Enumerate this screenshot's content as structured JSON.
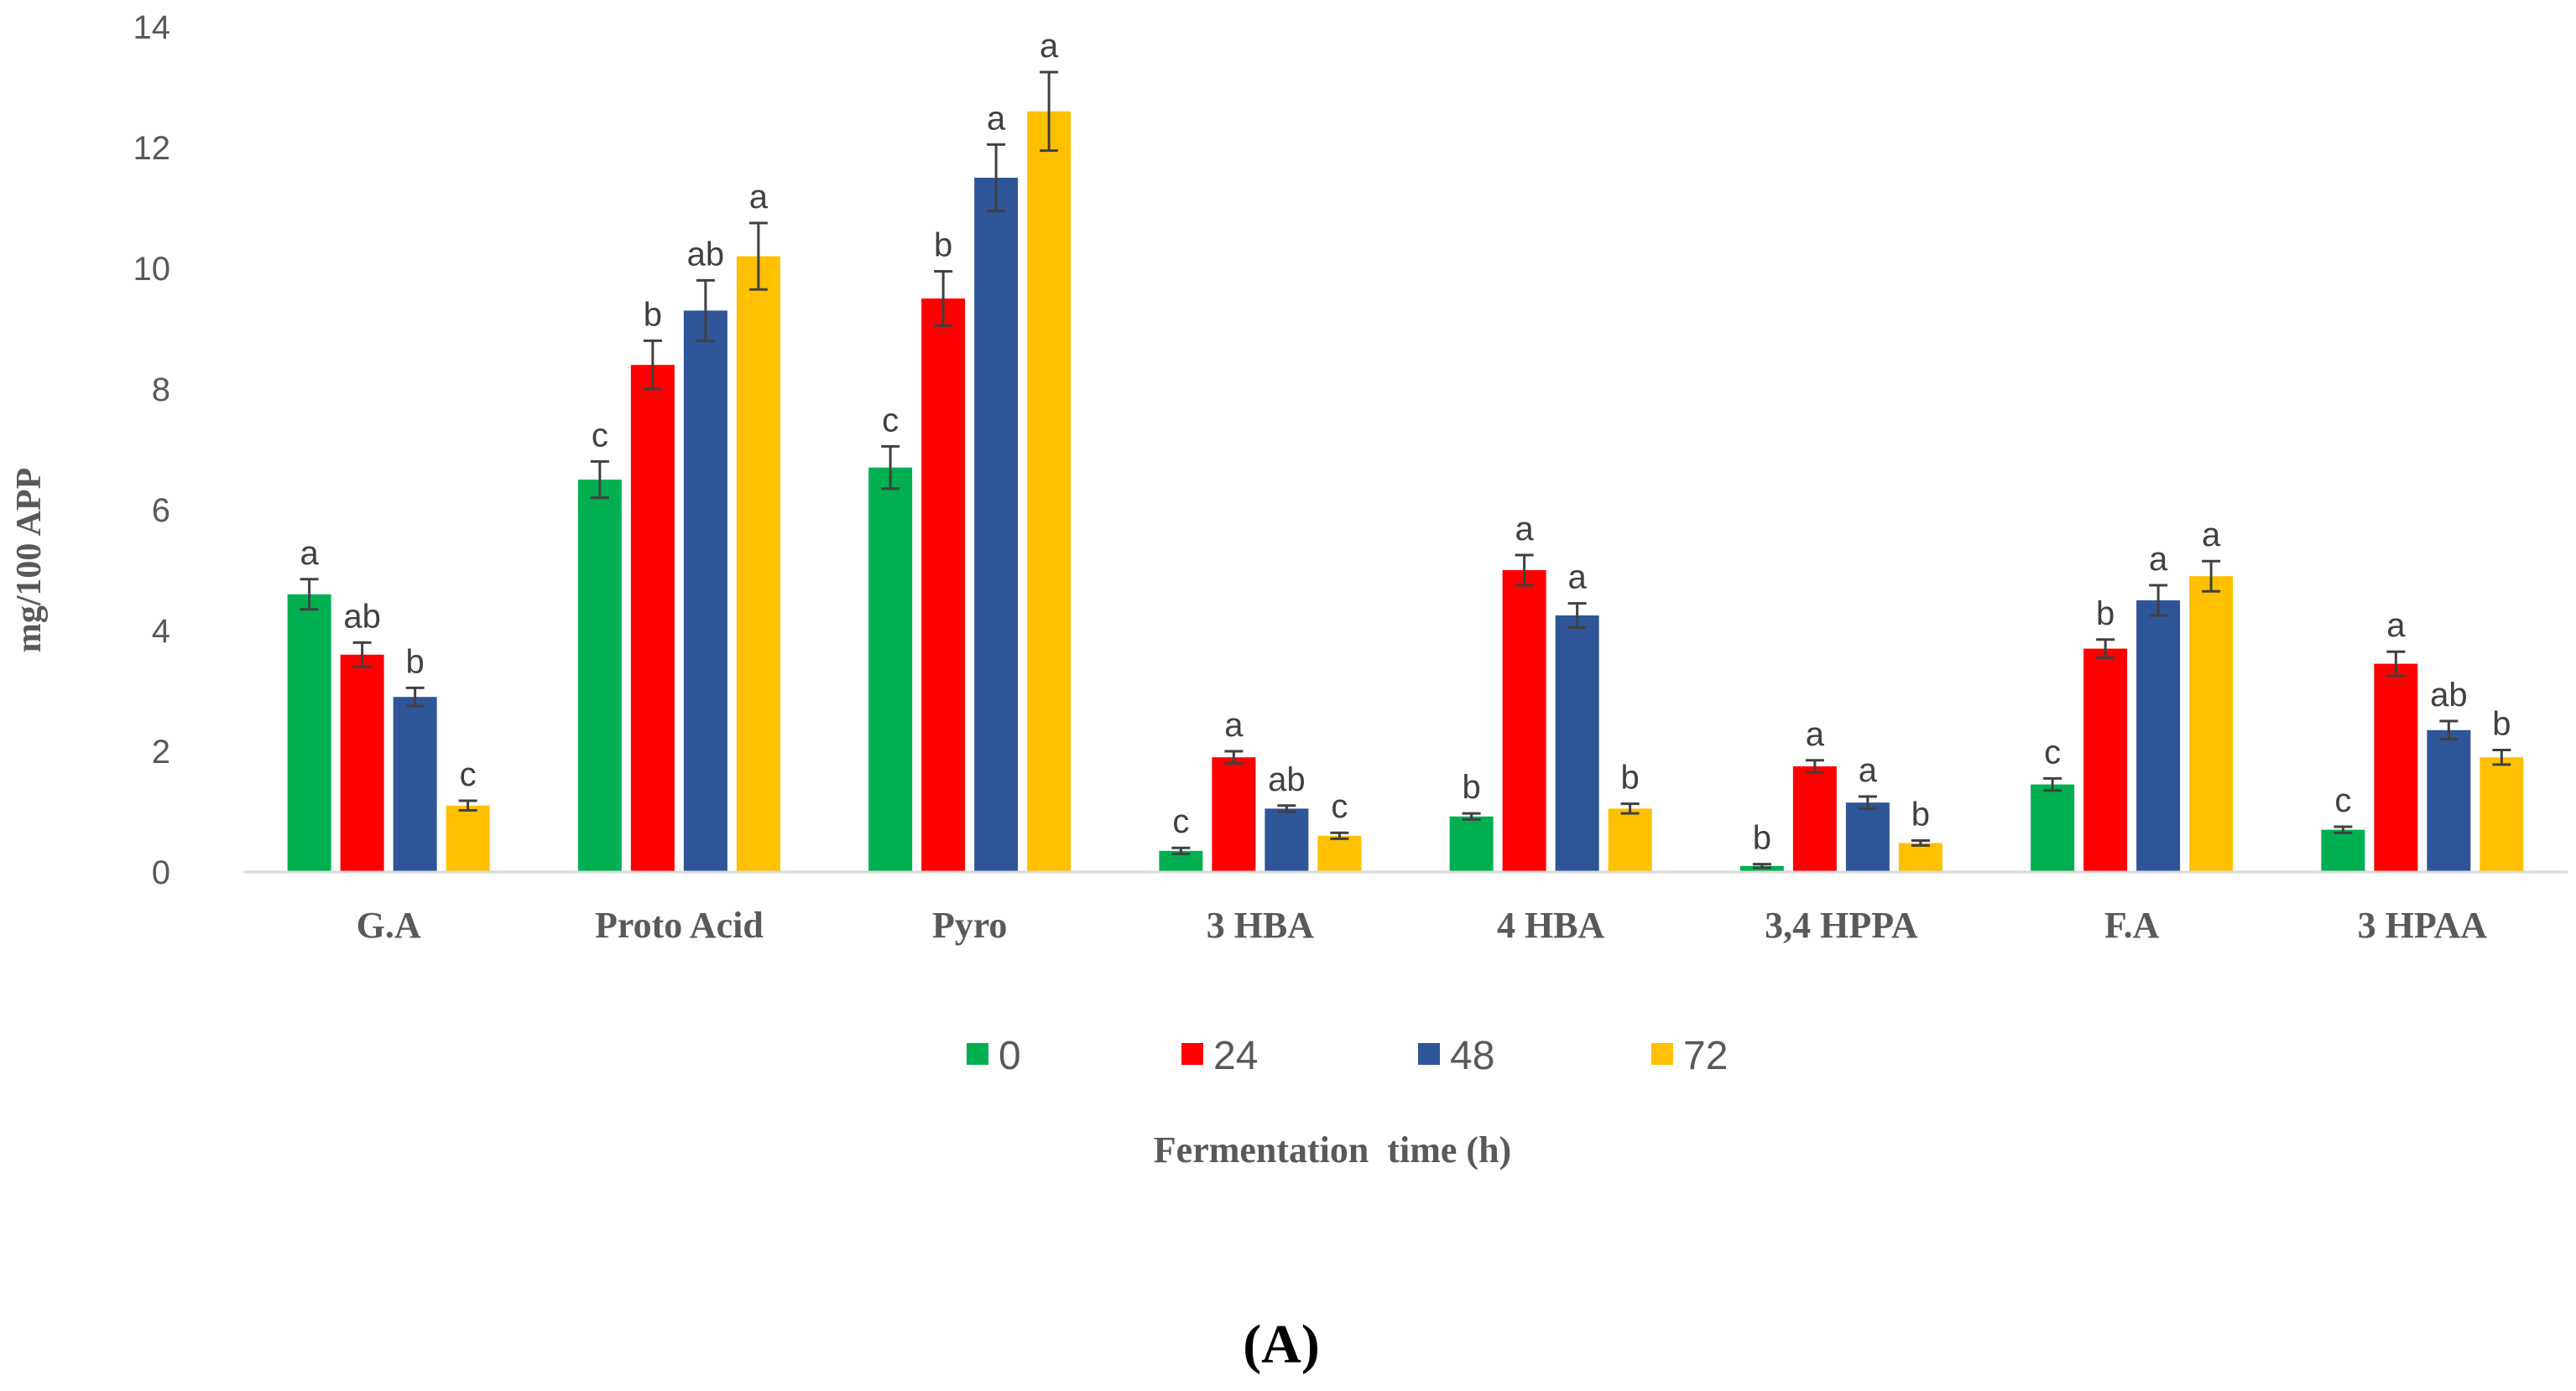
{
  "chart_data": {
    "type": "bar",
    "title": "",
    "xlabel": "Fermentation  time (h)",
    "ylabel": "mg/100 APP",
    "ylim": [
      0,
      14
    ],
    "yticks": [
      0,
      2,
      4,
      6,
      8,
      10,
      12,
      14
    ],
    "grid": false,
    "legend_position": "bottom",
    "panel_label": "(A)",
    "categories": [
      "G.A",
      "Proto Acid",
      "Pyro",
      "3 HBA",
      "4 HBA",
      "3,4 HPPA",
      "F.A",
      "3 HPAA"
    ],
    "series": [
      {
        "name": "0",
        "color": "#00b050",
        "values": [
          4.6,
          6.5,
          6.7,
          0.35,
          0.92,
          0.1,
          1.45,
          0.7
        ],
        "errors": [
          0.25,
          0.3,
          0.35,
          0.05,
          0.05,
          0.03,
          0.1,
          0.05
        ],
        "labels": [
          "a",
          "c",
          "c",
          "c",
          "b",
          "b",
          "c",
          "c"
        ]
      },
      {
        "name": "24",
        "color": "#ff0000",
        "values": [
          3.6,
          8.4,
          9.5,
          1.9,
          5.0,
          1.75,
          3.7,
          3.45
        ],
        "errors": [
          0.2,
          0.4,
          0.45,
          0.1,
          0.25,
          0.1,
          0.15,
          0.2
        ],
        "labels": [
          "ab",
          "b",
          "b",
          "a",
          "a",
          "a",
          "b",
          "a"
        ]
      },
      {
        "name": "48",
        "color": "#2e5597",
        "values": [
          2.9,
          9.3,
          11.5,
          1.05,
          4.25,
          1.15,
          4.5,
          2.35
        ],
        "errors": [
          0.15,
          0.5,
          0.55,
          0.05,
          0.2,
          0.1,
          0.25,
          0.15
        ],
        "labels": [
          "b",
          "ab",
          "a",
          "ab",
          "a",
          "a",
          "a",
          "ab"
        ]
      },
      {
        "name": "72",
        "color": "#ffc000",
        "values": [
          1.1,
          10.2,
          12.6,
          0.6,
          1.05,
          0.48,
          4.9,
          1.9
        ],
        "errors": [
          0.08,
          0.55,
          0.65,
          0.05,
          0.08,
          0.04,
          0.25,
          0.12
        ],
        "labels": [
          "c",
          "a",
          "a",
          "c",
          "b",
          "b",
          "a",
          "b"
        ]
      }
    ]
  }
}
